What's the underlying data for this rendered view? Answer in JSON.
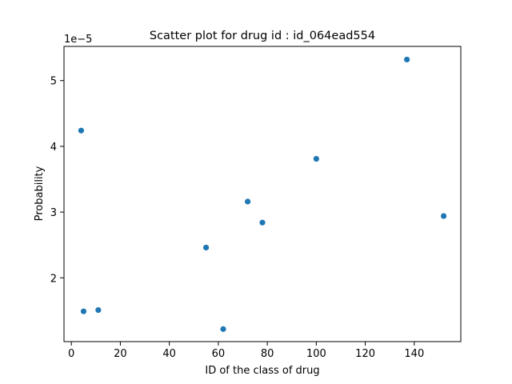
{
  "chart_data": {
    "type": "scatter",
    "title": "Scatter plot for drug id : id_064ead554",
    "xlabel": "ID of the class of drug",
    "ylabel": "Probability",
    "y_offset_label": "1e−5",
    "xlim": [
      -3,
      159
    ],
    "ylim": [
      1.03,
      5.52
    ],
    "x_ticks": [
      0,
      20,
      40,
      60,
      80,
      100,
      120,
      140
    ],
    "x_tick_labels": [
      "0",
      "20",
      "40",
      "60",
      "80",
      "100",
      "120",
      "140"
    ],
    "y_ticks": [
      2,
      3,
      4,
      5
    ],
    "y_tick_labels": [
      "2",
      "3",
      "4",
      "5"
    ],
    "grid": false,
    "marker_color": "#1f77b4",
    "points": [
      {
        "x": 4,
        "y": 4.24
      },
      {
        "x": 5,
        "y": 1.49
      },
      {
        "x": 11,
        "y": 1.51
      },
      {
        "x": 55,
        "y": 2.46
      },
      {
        "x": 62,
        "y": 1.22
      },
      {
        "x": 72,
        "y": 3.16
      },
      {
        "x": 78,
        "y": 2.84
      },
      {
        "x": 100,
        "y": 3.81
      },
      {
        "x": 137,
        "y": 5.32
      },
      {
        "x": 152,
        "y": 2.94
      }
    ]
  }
}
